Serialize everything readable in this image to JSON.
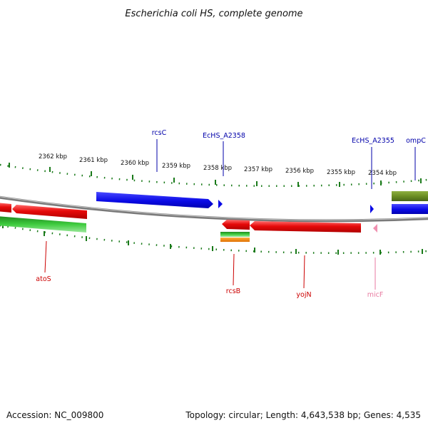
{
  "title": "Escherichia coli HS, complete genome",
  "footer": {
    "accession": "Accession: NC_009800",
    "summary": "Topology: circular; Length: 4,643,538 bp; Genes: 4,535"
  },
  "tick_labels": [
    "2362 kbp",
    "2361 kbp",
    "2360 kbp",
    "2359 kbp",
    "2358 kbp",
    "2357 kbp",
    "2356 kbp",
    "2355 kbp",
    "2354 kbp"
  ],
  "colors": {
    "gene_forward": "#0a0ae6",
    "gene_reverse": "#e60a0a",
    "green_feature": "#2eb82e",
    "olive_feature": "#6b8e23",
    "orange_feature": "#ff8c00",
    "pink_feature": "#f090b0",
    "backbone": "#888888",
    "tick_marks": "#1a7a1a",
    "label_blue": "#0000aa",
    "label_red": "#cc0000",
    "label_pink": "#e87aa0"
  },
  "genes": [
    {
      "id": "rcsC",
      "label": "rcsC",
      "strand": "forward"
    },
    {
      "id": "EcHS_A2358",
      "label": "EcHS_A2358",
      "strand": "forward"
    },
    {
      "id": "EcHS_A2355",
      "label": "EcHS_A2355",
      "strand": "forward"
    },
    {
      "id": "ompC",
      "label": "ompC",
      "strand": "forward"
    },
    {
      "id": "atoS",
      "label": "atoS",
      "strand": "reverse"
    },
    {
      "id": "rcsB",
      "label": "rcsB",
      "strand": "reverse"
    },
    {
      "id": "yojN",
      "label": "yojN",
      "strand": "reverse"
    },
    {
      "id": "micF",
      "label": "micF",
      "strand": "reverse"
    }
  ]
}
